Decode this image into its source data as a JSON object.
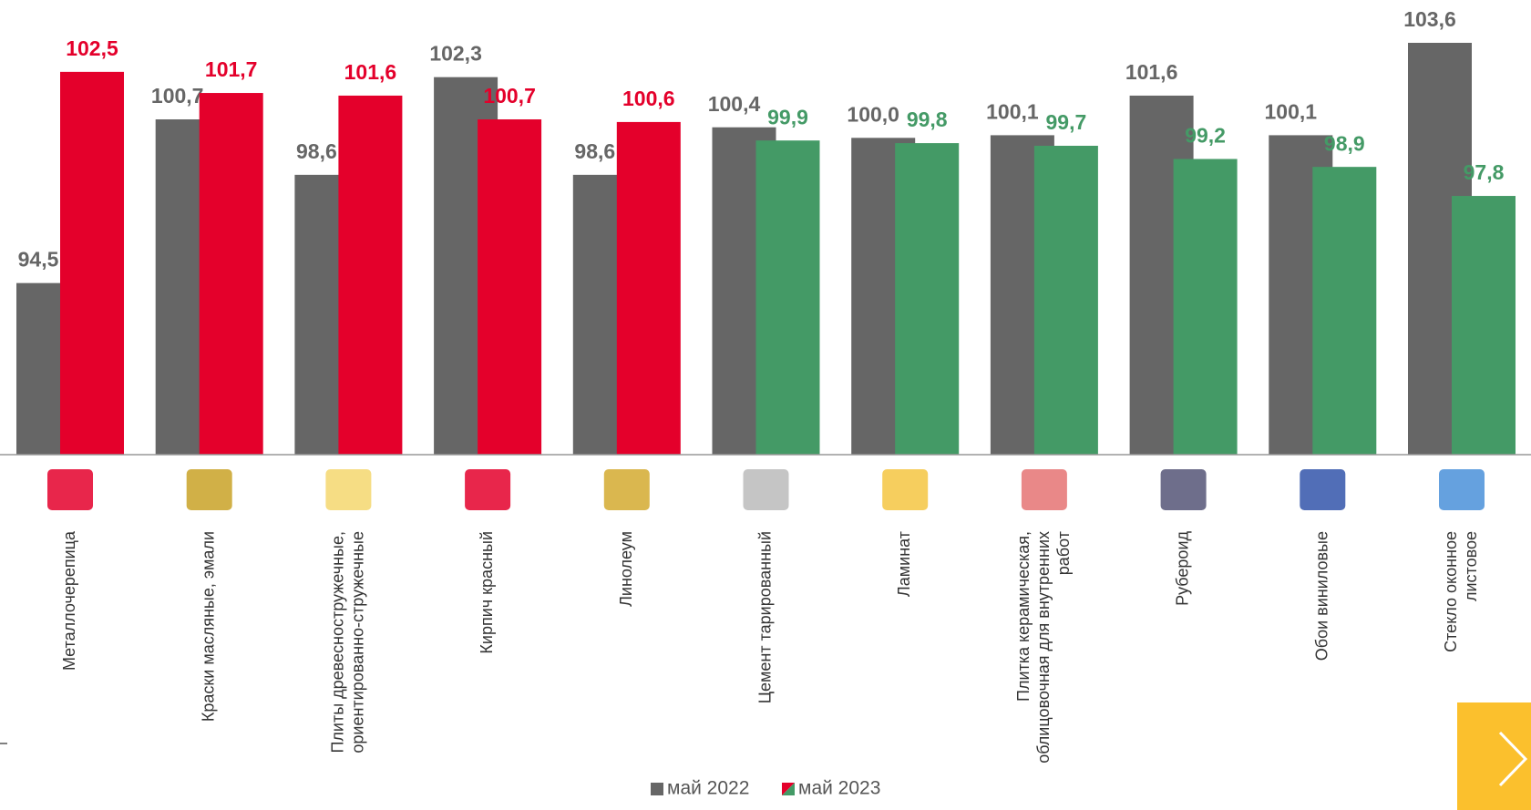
{
  "chart_data": {
    "type": "bar",
    "categories": [
      "Металлочерепица",
      "Краски масляные, эмали",
      "Плиты древесностружечные,\nориентированно-стружечные",
      "Кирпич красный",
      "Линолеум",
      "Цемент тарированный",
      "Ламинат",
      "Плитка керамическая,\nоблицовочная для внутренних\nработ",
      "Рубероид",
      "Обои виниловые",
      "Стекло оконное\nлистовое"
    ],
    "series": [
      {
        "name": "май 2022",
        "color": "#666666",
        "values": [
          94.5,
          100.7,
          98.6,
          102.3,
          98.6,
          100.4,
          100.0,
          100.1,
          101.6,
          100.1,
          103.6
        ],
        "value_labels": [
          "94,5",
          "100,7",
          "98,6",
          "102,3",
          "98,6",
          "100,4",
          "100,0",
          "100,1",
          "101,6",
          "100,1",
          "103,6"
        ]
      },
      {
        "name": "май 2023",
        "colors": [
          "#e4002b",
          "#e4002b",
          "#e4002b",
          "#e4002b",
          "#e4002b",
          "#449a66",
          "#449a66",
          "#449a66",
          "#449a66",
          "#449a66",
          "#449a66"
        ],
        "values": [
          102.5,
          101.7,
          101.6,
          100.7,
          100.6,
          99.9,
          99.8,
          99.7,
          99.2,
          98.9,
          97.8
        ],
        "value_labels": [
          "102,5",
          "101,7",
          "101,6",
          "100,7",
          "100,6",
          "99,9",
          "99,8",
          "99,7",
          "99,2",
          "98,9",
          "97,8"
        ]
      }
    ],
    "ylim": [
      88,
      104
    ]
  }
}
